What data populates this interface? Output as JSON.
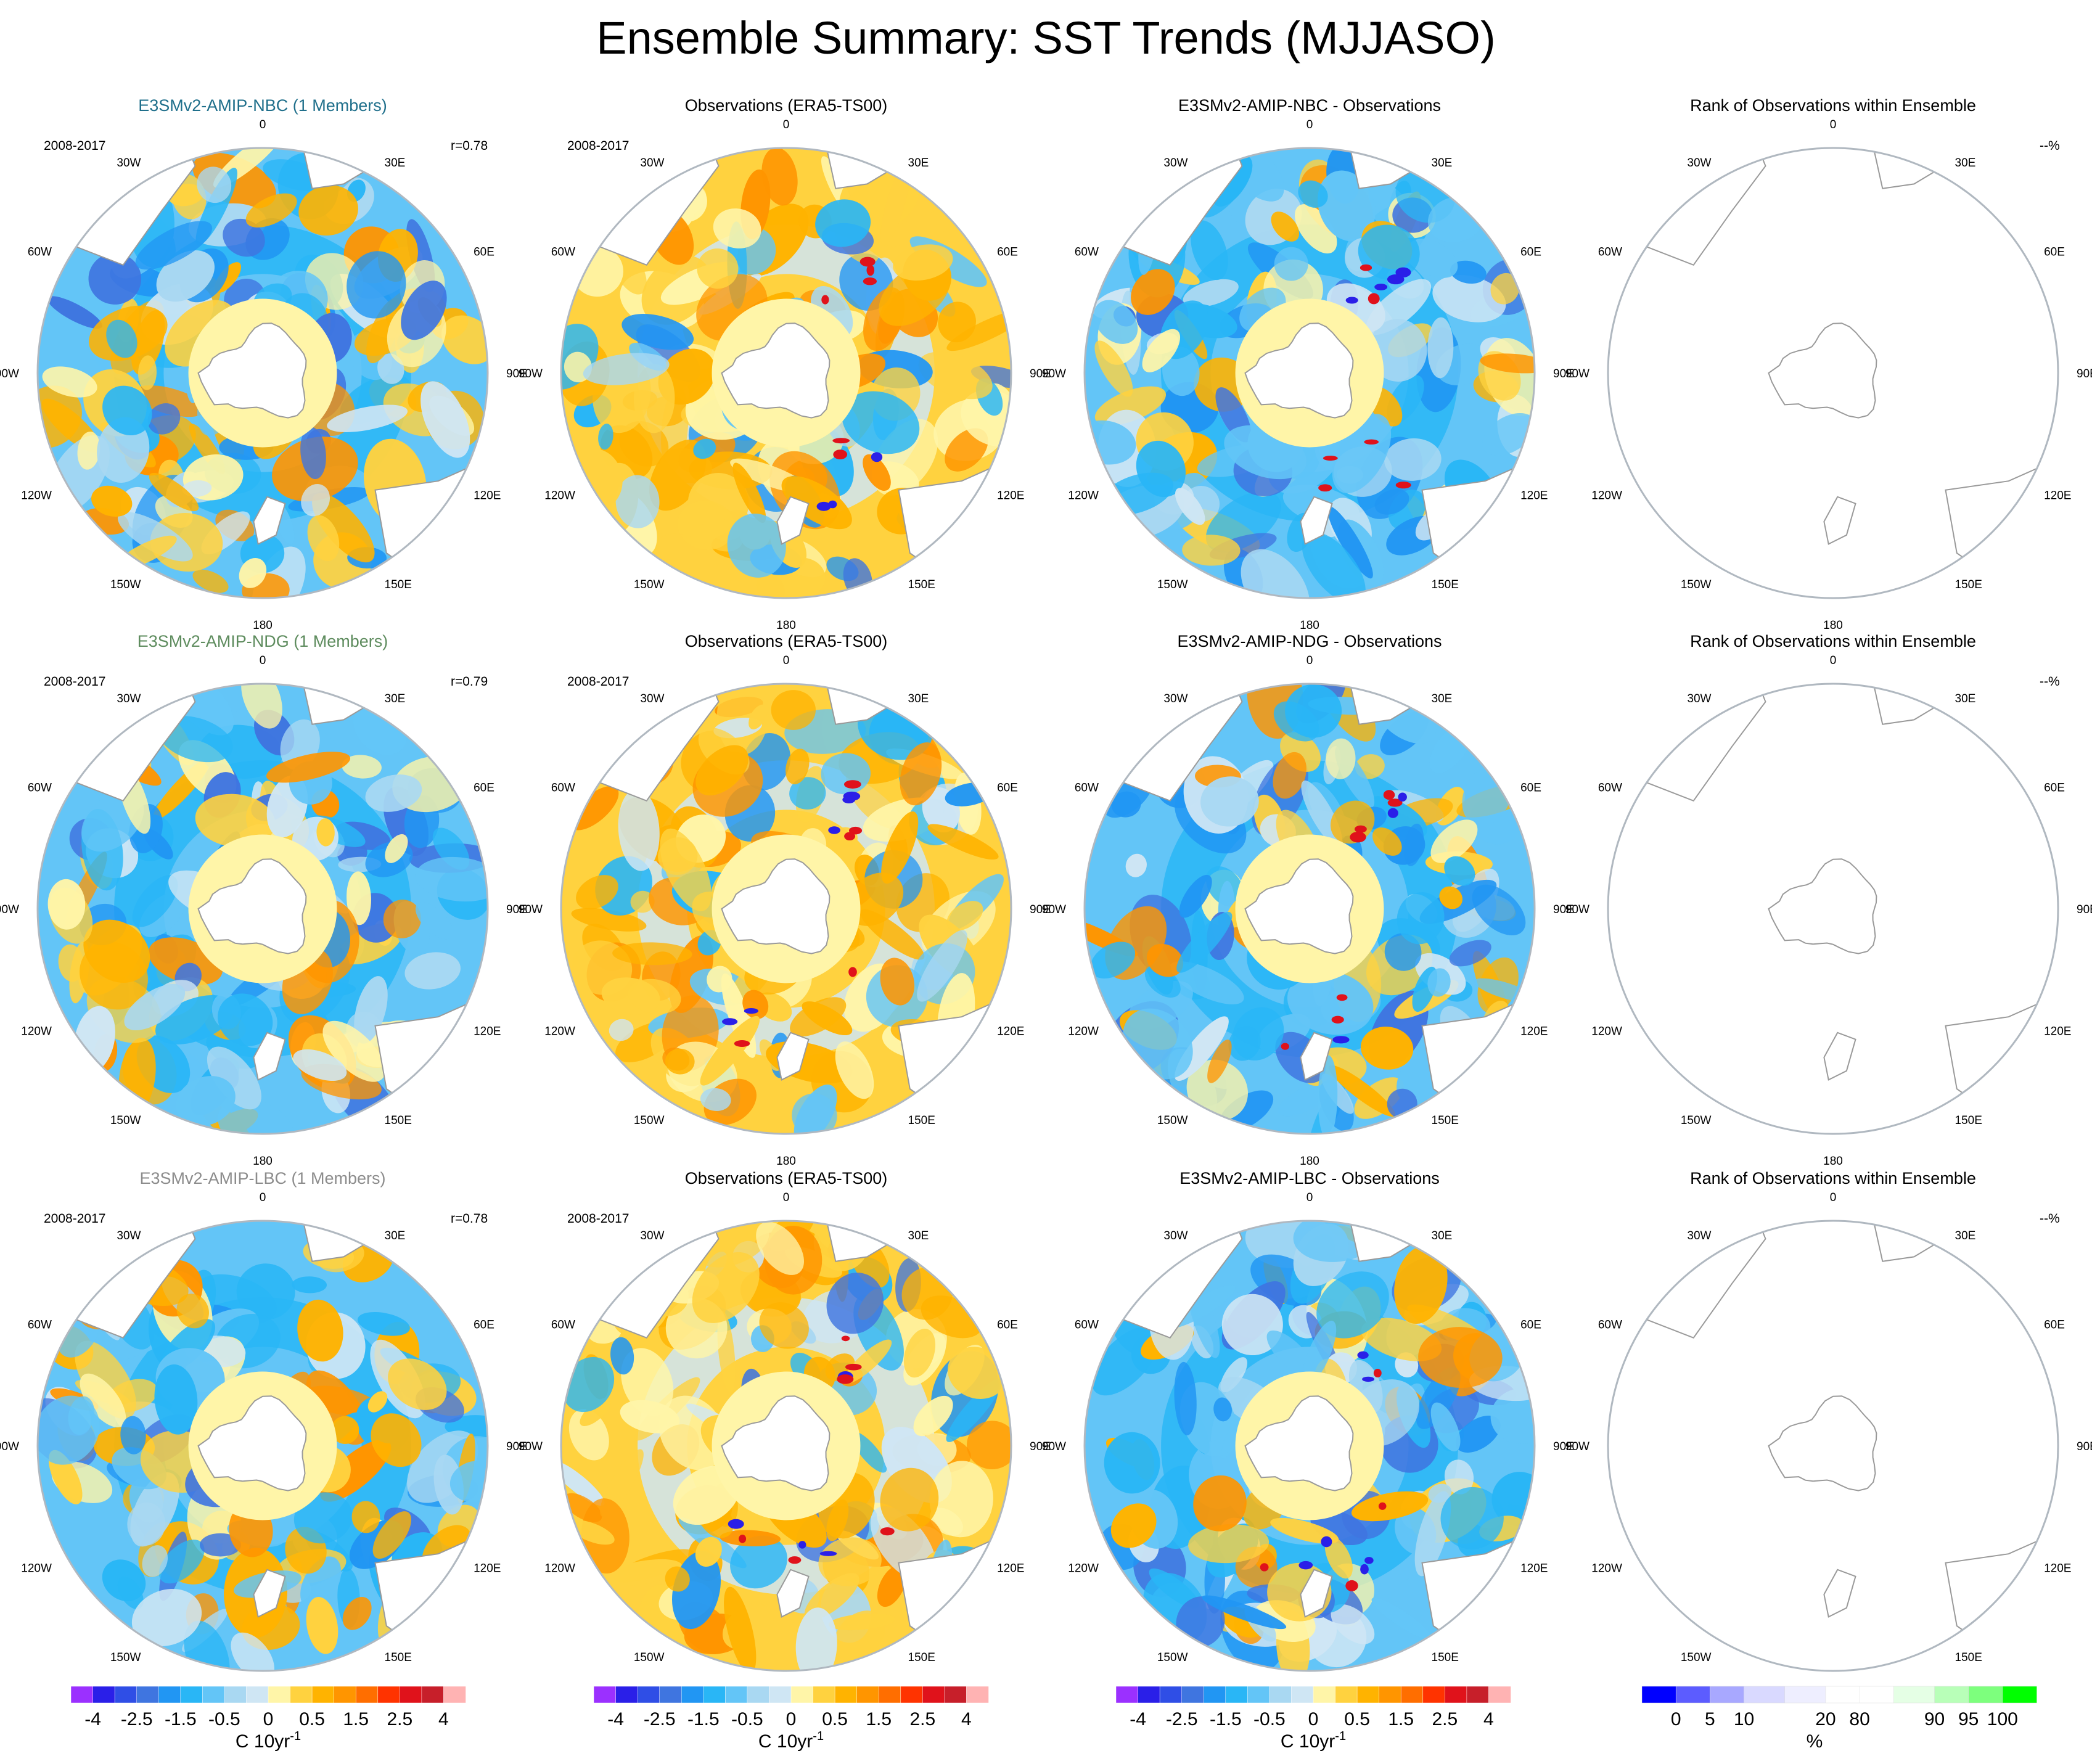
{
  "figure": {
    "title": "Ensemble Summary: SST Trends (MJJASO)"
  },
  "colors": {
    "trend_palette": [
      "#9b30ff",
      "#2a1fe8",
      "#2f4ee6",
      "#3f75e0",
      "#2196f3",
      "#29b6f6",
      "#63c5f7",
      "#a9d8f2",
      "#cfe6f4",
      "#fff5a8",
      "#ffd23f",
      "#ffb300",
      "#ff9500",
      "#ff6e00",
      "#ff3300",
      "#e0121b",
      "#c71f2a",
      "#ffb3b3"
    ],
    "rank_palette": [
      "#0000ff",
      "#5c5cff",
      "#a8a8ff",
      "#d9d9ff",
      "#eeeeff",
      "#ffffff",
      "#ffffff",
      "#e5ffe5",
      "#b8ffb8",
      "#7dff7d",
      "#00ff00"
    ],
    "land_outline": "#9a9a9a",
    "circle_border": "#b0b8c0"
  },
  "rows": [
    {
      "model": {
        "title": "E3SMv2-AMIP-NBC (1 Members)",
        "title_color": "#1f6f8b",
        "period": "2008-2017",
        "corr": "r=0.78"
      },
      "obs": {
        "title": "Observations (ERA5-TS00)",
        "period": "2008-2017"
      },
      "diff": {
        "title": "E3SMv2-AMIP-NBC - Observations"
      },
      "rank": {
        "title": "Rank of Observations within Ensemble",
        "pct": "--%"
      }
    },
    {
      "model": {
        "title": "E3SMv2-AMIP-NDG (1 Members)",
        "title_color": "#5e8c5e",
        "period": "2008-2017",
        "corr": "r=0.79"
      },
      "obs": {
        "title": "Observations (ERA5-TS00)",
        "period": "2008-2017"
      },
      "diff": {
        "title": "E3SMv2-AMIP-NDG - Observations"
      },
      "rank": {
        "title": "Rank of Observations within Ensemble",
        "pct": "--%"
      }
    },
    {
      "model": {
        "title": "E3SMv2-AMIP-LBC (1 Members)",
        "title_color": "#8c8c8c",
        "period": "2008-2017",
        "corr": "r=0.78"
      },
      "obs": {
        "title": "Observations (ERA5-TS00)",
        "period": "2008-2017"
      },
      "diff": {
        "title": "E3SMv2-AMIP-LBC - Observations"
      },
      "rank": {
        "title": "Rank of Observations within Ensemble",
        "pct": "--%"
      }
    }
  ],
  "lon_labels": [
    "0",
    "30E",
    "60E",
    "90E",
    "120E",
    "150E",
    "180",
    "150W",
    "120W",
    "90W",
    "60W",
    "30W"
  ],
  "colorbars": {
    "trend": {
      "tick_labels": [
        "-4",
        "-2.5",
        "-1.5",
        "-0.5",
        "0",
        "0.5",
        "1.5",
        "2.5",
        "4"
      ],
      "unit_main": "C 10yr",
      "unit_sup": "-1"
    },
    "rank": {
      "tick_labels": [
        "0",
        "5",
        "10",
        "20",
        "80",
        "90",
        "95",
        "100"
      ],
      "unit": "%"
    }
  },
  "chart_data": [
    {
      "type": "map",
      "projection": "south-polar-stereographic",
      "variable": "SST trend",
      "units": "C 10yr-1",
      "panels": [
        "E3SMv2-AMIP-NBC",
        "Observations (ERA5-TS00)",
        "E3SMv2-AMIP-NBC - Observations",
        "Rank of Observations within Ensemble"
      ],
      "pattern_correlation": 0.78
    },
    {
      "type": "map",
      "projection": "south-polar-stereographic",
      "variable": "SST trend",
      "units": "C 10yr-1",
      "panels": [
        "E3SMv2-AMIP-NDG",
        "Observations (ERA5-TS00)",
        "E3SMv2-AMIP-NDG - Observations",
        "Rank of Observations within Ensemble"
      ],
      "pattern_correlation": 0.79
    },
    {
      "type": "map",
      "projection": "south-polar-stereographic",
      "variable": "SST trend",
      "units": "C 10yr-1",
      "panels": [
        "E3SMv2-AMIP-LBC",
        "Observations (ERA5-TS00)",
        "E3SMv2-AMIP-LBC - Observations",
        "Rank of Observations within Ensemble"
      ],
      "pattern_correlation": 0.78
    }
  ]
}
